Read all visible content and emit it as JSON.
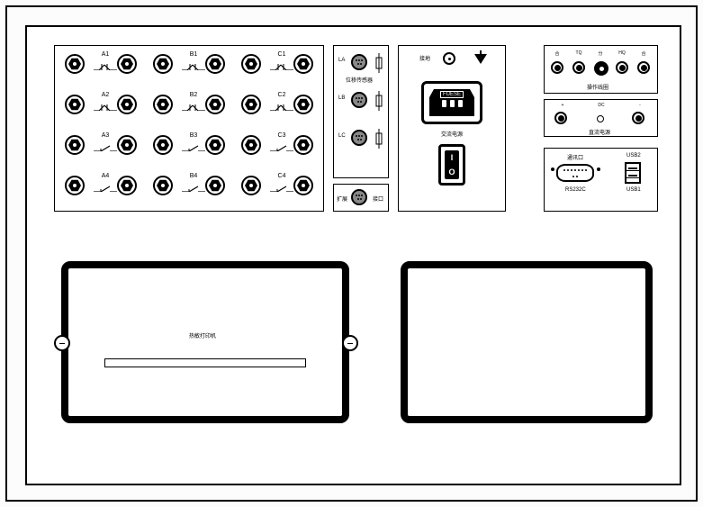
{
  "channels": {
    "rows": [
      [
        "A1",
        "B1",
        "C1"
      ],
      [
        "A2",
        "B2",
        "C2"
      ],
      [
        "A3",
        "B3",
        "C3"
      ],
      [
        "A4",
        "B4",
        "C4"
      ]
    ],
    "switch_type_rows": [
      "breaker",
      "breaker",
      "switch",
      "switch"
    ]
  },
  "sensors": {
    "items": [
      "LA",
      "LB",
      "LC"
    ],
    "title": "位移传感器",
    "expand_label_l": "扩展",
    "expand_label_r": "接口"
  },
  "power": {
    "ground_label": "接地",
    "fuse_text": "FUESE",
    "ac_label": "交流电源",
    "switch_on": "I",
    "switch_off": "O"
  },
  "operation": {
    "terminals": [
      "合",
      "TQ",
      "分",
      "HQ",
      "合"
    ],
    "title": "操作线圈"
  },
  "dc": {
    "left": "+",
    "center": "DC",
    "right": "-",
    "title": "直流电源"
  },
  "comm": {
    "title": "通讯口",
    "rs232": "RS232C",
    "usb1": "USB1",
    "usb2": "USB2"
  },
  "printer": {
    "title": "热敏打印机"
  },
  "colors": {
    "bg": "#ffffff",
    "line": "#000000"
  }
}
